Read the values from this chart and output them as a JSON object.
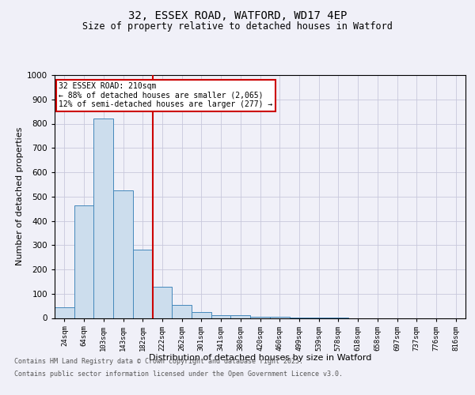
{
  "title_line1": "32, ESSEX ROAD, WATFORD, WD17 4EP",
  "title_line2": "Size of property relative to detached houses in Watford",
  "xlabel": "Distribution of detached houses by size in Watford",
  "ylabel": "Number of detached properties",
  "bin_labels": [
    "24sqm",
    "64sqm",
    "103sqm",
    "143sqm",
    "182sqm",
    "222sqm",
    "262sqm",
    "301sqm",
    "341sqm",
    "380sqm",
    "420sqm",
    "460sqm",
    "499sqm",
    "539sqm",
    "578sqm",
    "618sqm",
    "658sqm",
    "697sqm",
    "737sqm",
    "776sqm",
    "816sqm"
  ],
  "bar_values": [
    45,
    465,
    820,
    525,
    280,
    130,
    55,
    25,
    10,
    12,
    5,
    5,
    2,
    2,
    1,
    0,
    0,
    0,
    0,
    0,
    0
  ],
  "bar_color": "#ccdded",
  "bar_edge_color": "#4488bb",
  "vline_x": 5,
  "vline_color": "#cc0000",
  "ylim": [
    0,
    1000
  ],
  "yticks": [
    0,
    100,
    200,
    300,
    400,
    500,
    600,
    700,
    800,
    900,
    1000
  ],
  "annotation_text": "32 ESSEX ROAD: 210sqm\n← 88% of detached houses are smaller (2,065)\n12% of semi-detached houses are larger (277) →",
  "annotation_box_color": "#ffffff",
  "annotation_box_edge_color": "#cc0000",
  "footnote_line1": "Contains HM Land Registry data © Crown copyright and database right 2025.",
  "footnote_line2": "Contains public sector information licensed under the Open Government Licence v3.0.",
  "background_color": "#f0f0f8",
  "grid_color": "#c8c8dc"
}
